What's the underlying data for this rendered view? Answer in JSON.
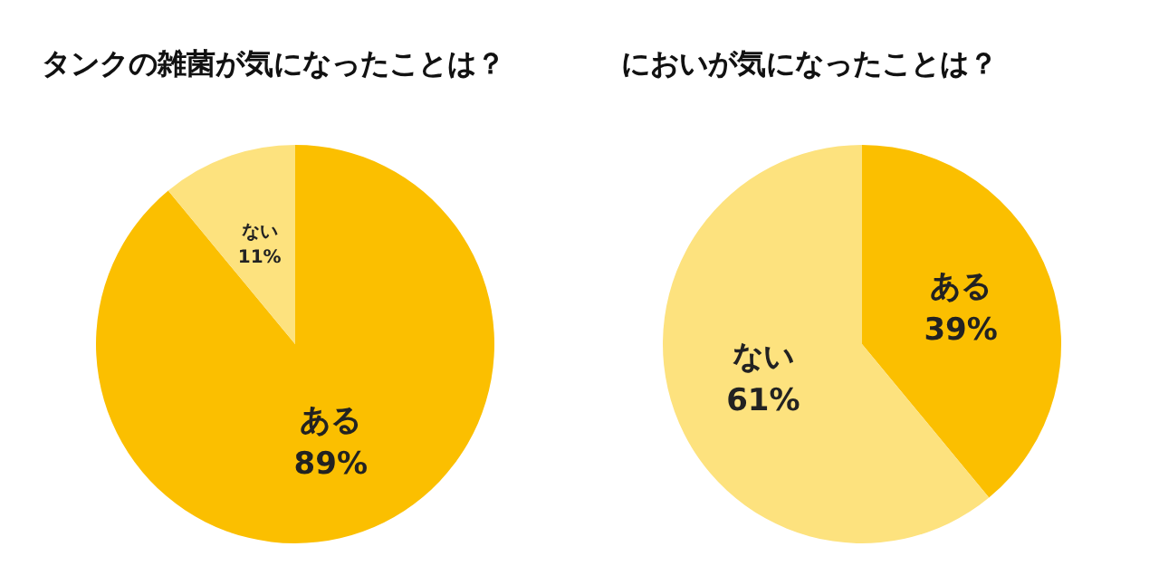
{
  "chart_data": [
    {
      "type": "pie",
      "title": "タンクの雑菌が気になったことは？",
      "categories": [
        "ある",
        "ない"
      ],
      "values": [
        89,
        11
      ],
      "value_labels": [
        "89%",
        "11%"
      ],
      "colors": [
        "#fbbf00",
        "#fde27e"
      ]
    },
    {
      "type": "pie",
      "title": "においが気になったことは？",
      "categories": [
        "ある",
        "ない"
      ],
      "values": [
        39,
        61
      ],
      "value_labels": [
        "39%",
        "61%"
      ],
      "colors": [
        "#fbbf00",
        "#fde27e"
      ]
    }
  ]
}
